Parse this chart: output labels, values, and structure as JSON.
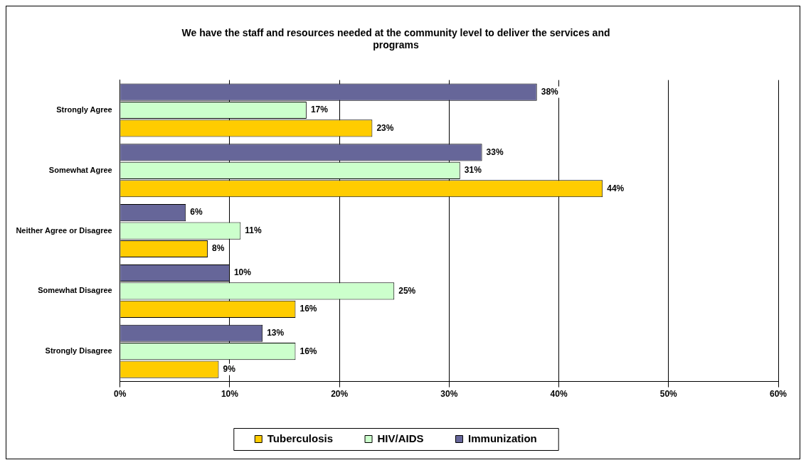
{
  "chart_data": {
    "type": "bar",
    "orientation": "horizontal",
    "title": "We have the staff and resources needed at the community level to deliver the services and programs",
    "categories": [
      "Strongly Agree",
      "Somewhat Agree",
      "Neither Agree or Disagree",
      "Somewhat Disagree",
      "Strongly Disagree"
    ],
    "series": [
      {
        "name": "Immunization",
        "color": "#666699",
        "values": [
          38,
          33,
          6,
          10,
          13
        ],
        "value_labels": [
          "38%",
          "33%",
          "6%",
          "10%",
          "13%"
        ]
      },
      {
        "name": "HIV/AIDS",
        "color": "#ccffcc",
        "values": [
          17,
          31,
          11,
          25,
          16
        ],
        "value_labels": [
          "17%",
          "31%",
          "11%",
          "25%",
          "16%"
        ]
      },
      {
        "name": "Tuberculosis",
        "color": "#ffcc00",
        "values": [
          23,
          44,
          8,
          16,
          9
        ],
        "value_labels": [
          "23%",
          "44%",
          "8%",
          "16%",
          "9%"
        ]
      }
    ],
    "xlim": [
      0,
      60
    ],
    "xticks": [
      {
        "value": 0,
        "label": "0%"
      },
      {
        "value": 10,
        "label": "10%"
      },
      {
        "value": 20,
        "label": "20%"
      },
      {
        "value": 30,
        "label": "30%"
      },
      {
        "value": 40,
        "label": "40%"
      },
      {
        "value": 50,
        "label": "50%"
      },
      {
        "value": 60,
        "label": "60%"
      }
    ],
    "grid": "x",
    "legend": "bottom"
  }
}
